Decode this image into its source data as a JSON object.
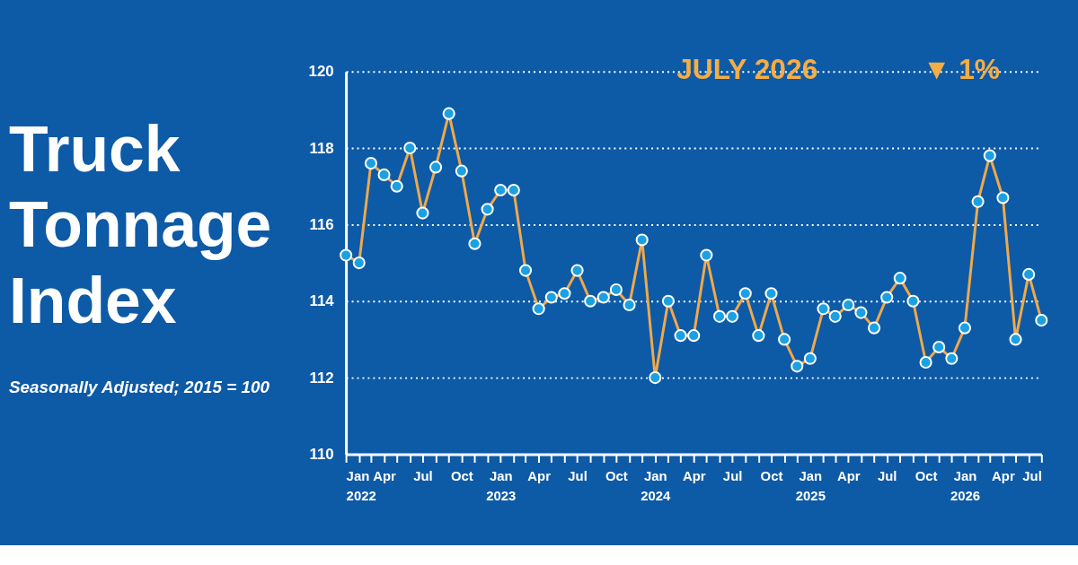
{
  "chart_data": {
    "type": "line",
    "title": "Truck Tonnage Index",
    "subtitle": "Seasonally Adjusted; 2015 = 100",
    "annotations": [
      "JULY 2026",
      "▼ 1%"
    ],
    "x": [
      "2022-01",
      "2022-02",
      "2022-03",
      "2022-04",
      "2022-05",
      "2022-06",
      "2022-07",
      "2022-08",
      "2022-09",
      "2022-10",
      "2022-11",
      "2022-12",
      "2023-01",
      "2023-02",
      "2023-03",
      "2023-04",
      "2023-05",
      "2023-06",
      "2023-07",
      "2023-08",
      "2023-09",
      "2023-10",
      "2023-11",
      "2023-12",
      "2024-01",
      "2024-02",
      "2024-03",
      "2024-04",
      "2024-05",
      "2024-06",
      "2024-07",
      "2024-08",
      "2024-09",
      "2024-10",
      "2024-11",
      "2024-12",
      "2025-01",
      "2025-02",
      "2025-03",
      "2025-04",
      "2025-05",
      "2025-06",
      "2025-07",
      "2025-08",
      "2025-09",
      "2025-10",
      "2025-11",
      "2025-12",
      "2026-01",
      "2026-02",
      "2026-03",
      "2026-04",
      "2026-05",
      "2026-06",
      "2026-07"
    ],
    "series": [
      {
        "color": "#f0a94a",
        "values": [
          115.2,
          115.0,
          117.6,
          117.3,
          117.0,
          118.0,
          116.3,
          117.5,
          118.9,
          117.4,
          115.5,
          116.4,
          116.9,
          116.9,
          114.8,
          113.8,
          114.1,
          114.2,
          114.8,
          114.0,
          114.1,
          114.3,
          113.9,
          115.6,
          112.0,
          114.0,
          113.1,
          113.1,
          115.2,
          113.6,
          113.6,
          114.2,
          113.1,
          114.2,
          113.0,
          112.3,
          112.5,
          113.8,
          113.6,
          113.9,
          113.7,
          113.3,
          114.1,
          114.6,
          114.0,
          112.4,
          112.8,
          112.5,
          113.3,
          116.6,
          117.8,
          116.7,
          113.0,
          114.7,
          113.5
        ]
      }
    ],
    "xlim": [
      "2022-01",
      "2026-07"
    ],
    "xticks": [
      {
        "value": "2022-01",
        "label": "Jan 2022"
      },
      {
        "value": "2022-02",
        "label": null
      },
      {
        "value": "2022-03",
        "label": null
      },
      {
        "value": "2022-04",
        "label": "Apr"
      },
      {
        "value": "2022-05",
        "label": null
      },
      {
        "value": "2022-06",
        "label": null
      },
      {
        "value": "2022-07",
        "label": "Jul"
      },
      {
        "value": "2022-08",
        "label": null
      },
      {
        "value": "2022-09",
        "label": null
      },
      {
        "value": "2022-10",
        "label": "Oct"
      },
      {
        "value": "2022-11",
        "label": null
      },
      {
        "value": "2022-12",
        "label": null
      },
      {
        "value": "2023-01",
        "label": "Jan 2023"
      },
      {
        "value": "2023-02",
        "label": null
      },
      {
        "value": "2023-03",
        "label": null
      },
      {
        "value": "2023-04",
        "label": "Apr"
      },
      {
        "value": "2023-05",
        "label": null
      },
      {
        "value": "2023-06",
        "label": null
      },
      {
        "value": "2023-07",
        "label": "Jul"
      },
      {
        "value": "2023-08",
        "label": null
      },
      {
        "value": "2023-09",
        "label": null
      },
      {
        "value": "2023-10",
        "label": "Oct"
      },
      {
        "value": "2023-11",
        "label": null
      },
      {
        "value": "2023-12",
        "label": null
      },
      {
        "value": "2024-01",
        "label": "Jan 2024"
      },
      {
        "value": "2024-02",
        "label": null
      },
      {
        "value": "2024-03",
        "label": null
      },
      {
        "value": "2024-04",
        "label": "Apr"
      },
      {
        "value": "2024-05",
        "label": null
      },
      {
        "value": "2024-06",
        "label": null
      },
      {
        "value": "2024-07",
        "label": "Jul"
      },
      {
        "value": "2024-08",
        "label": null
      },
      {
        "value": "2024-09",
        "label": null
      },
      {
        "value": "2024-10",
        "label": "Oct"
      },
      {
        "value": "2024-11",
        "label": null
      },
      {
        "value": "2024-12",
        "label": null
      },
      {
        "value": "2025-01",
        "label": "Jan 2025"
      },
      {
        "value": "2025-02",
        "label": null
      },
      {
        "value": "2025-03",
        "label": null
      },
      {
        "value": "2025-04",
        "label": "Apr"
      },
      {
        "value": "2025-05",
        "label": null
      },
      {
        "value": "2025-06",
        "label": null
      },
      {
        "value": "2025-07",
        "label": "Jul"
      },
      {
        "value": "2025-08",
        "label": null
      },
      {
        "value": "2025-09",
        "label": null
      },
      {
        "value": "2025-10",
        "label": "Oct"
      },
      {
        "value": "2025-11",
        "label": null
      },
      {
        "value": "2025-12",
        "label": null
      },
      {
        "value": "2026-01",
        "label": "Jan 2026"
      },
      {
        "value": "2026-02",
        "label": null
      },
      {
        "value": "2026-03",
        "label": null
      },
      {
        "value": "2026-04",
        "label": "Apr"
      },
      {
        "value": "2026-05",
        "label": null
      },
      {
        "value": "2026-06",
        "label": null
      },
      {
        "value": "2026-07",
        "label": "Jul"
      }
    ],
    "ylim": [
      110,
      120
    ],
    "yticks": [
      110,
      112,
      114,
      116,
      118,
      120
    ],
    "grid": "y",
    "marker": "circle",
    "line_style": "solid"
  }
}
